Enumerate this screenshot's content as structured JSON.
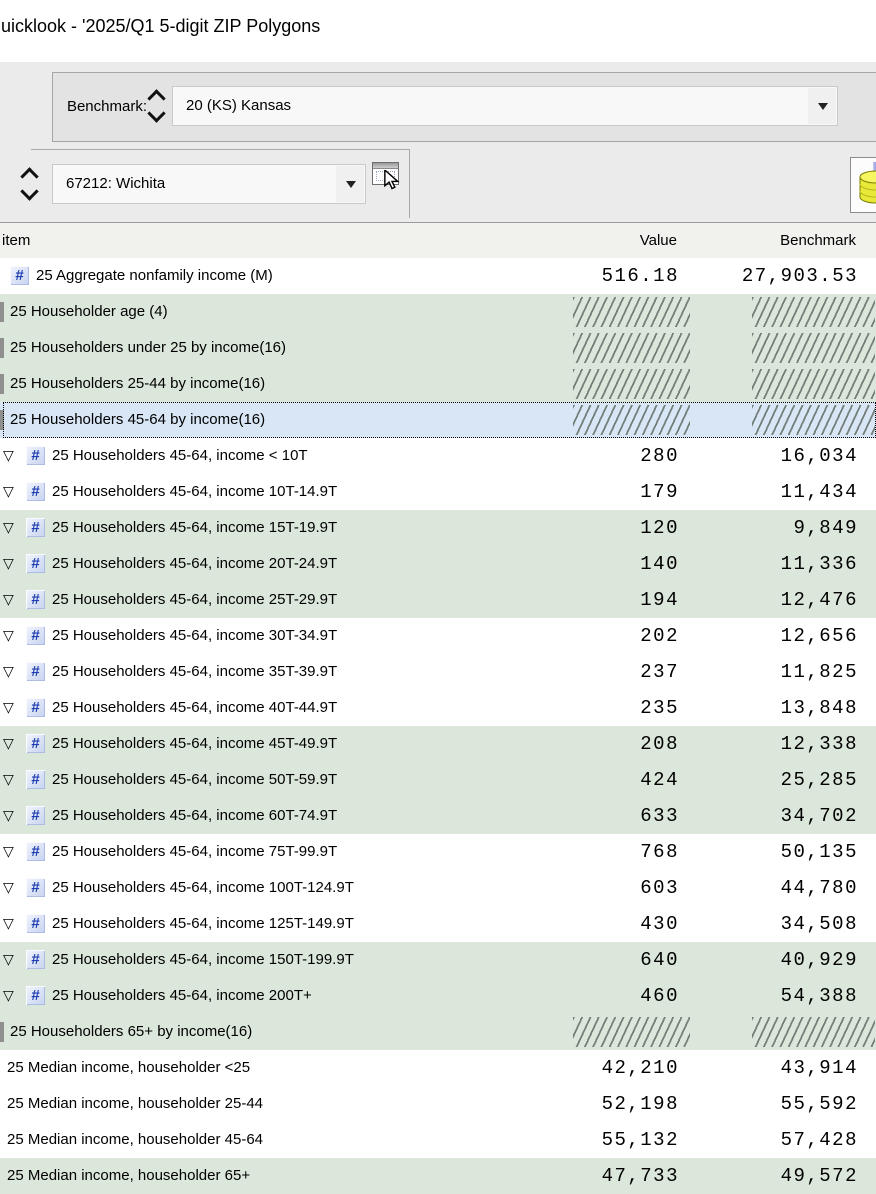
{
  "window": {
    "title": "uicklook - '2025/Q1 5-digit ZIP Polygons"
  },
  "colors": {
    "band_green": "#dce7db",
    "selected_blue": "#d8e6f6",
    "hash_icon_blue": "#1d3fb0",
    "panel_grey": "#e3e3e3",
    "background_grey": "#ebebeb"
  },
  "icons": {
    "hash_glyph": "#",
    "triangle_glyph": "▽",
    "dropdown_caret": "▼",
    "spinner": "up-down-chevrons",
    "map_select": "map-window-cursor",
    "side_button": "yellow-cylinder"
  },
  "benchmark_bar": {
    "label": "Benchmark:",
    "selected": "20 (KS) Kansas"
  },
  "area_bar": {
    "selected": "67212: Wichita"
  },
  "table": {
    "columns": [
      "item",
      "Value",
      "Benchmark"
    ],
    "rows": [
      {
        "label": "25 Aggregate nonfamily income (M)",
        "value": "516.18",
        "benchmark": "27,903.53",
        "kind": "measure",
        "shaded": false,
        "selected": false
      },
      {
        "label": "25 Householder age (4)",
        "value": null,
        "benchmark": null,
        "kind": "group",
        "shaded": true,
        "selected": false
      },
      {
        "label": "25 Householders under 25 by income(16)",
        "value": null,
        "benchmark": null,
        "kind": "group",
        "shaded": true,
        "selected": false
      },
      {
        "label": "25 Householders 25-44 by income(16)",
        "value": null,
        "benchmark": null,
        "kind": "group",
        "shaded": true,
        "selected": false
      },
      {
        "label": "25 Householders 45-64 by income(16)",
        "value": null,
        "benchmark": null,
        "kind": "group",
        "shaded": false,
        "selected": true
      },
      {
        "label": "25 Householders 45-64, income < 10T",
        "value": "280",
        "benchmark": "16,034",
        "kind": "detail",
        "shaded": false,
        "selected": false
      },
      {
        "label": "25 Householders 45-64, income 10T-14.9T",
        "value": "179",
        "benchmark": "11,434",
        "kind": "detail",
        "shaded": false,
        "selected": false
      },
      {
        "label": "25 Householders 45-64, income 15T-19.9T",
        "value": "120",
        "benchmark": "9,849",
        "kind": "detail",
        "shaded": true,
        "selected": false
      },
      {
        "label": "25 Householders 45-64, income 20T-24.9T",
        "value": "140",
        "benchmark": "11,336",
        "kind": "detail",
        "shaded": true,
        "selected": false
      },
      {
        "label": "25 Householders 45-64, income 25T-29.9T",
        "value": "194",
        "benchmark": "12,476",
        "kind": "detail",
        "shaded": true,
        "selected": false
      },
      {
        "label": "25 Householders 45-64, income 30T-34.9T",
        "value": "202",
        "benchmark": "12,656",
        "kind": "detail",
        "shaded": false,
        "selected": false
      },
      {
        "label": "25 Householders 45-64, income 35T-39.9T",
        "value": "237",
        "benchmark": "11,825",
        "kind": "detail",
        "shaded": false,
        "selected": false
      },
      {
        "label": "25 Householders 45-64, income 40T-44.9T",
        "value": "235",
        "benchmark": "13,848",
        "kind": "detail",
        "shaded": false,
        "selected": false
      },
      {
        "label": "25 Householders 45-64, income 45T-49.9T",
        "value": "208",
        "benchmark": "12,338",
        "kind": "detail",
        "shaded": true,
        "selected": false
      },
      {
        "label": "25 Householders 45-64, income 50T-59.9T",
        "value": "424",
        "benchmark": "25,285",
        "kind": "detail",
        "shaded": true,
        "selected": false
      },
      {
        "label": "25 Householders 45-64, income 60T-74.9T",
        "value": "633",
        "benchmark": "34,702",
        "kind": "detail",
        "shaded": true,
        "selected": false
      },
      {
        "label": "25 Householders 45-64, income 75T-99.9T",
        "value": "768",
        "benchmark": "50,135",
        "kind": "detail",
        "shaded": false,
        "selected": false
      },
      {
        "label": "25 Householders 45-64, income 100T-124.9T",
        "value": "603",
        "benchmark": "44,780",
        "kind": "detail",
        "shaded": false,
        "selected": false
      },
      {
        "label": "25 Householders 45-64, income 125T-149.9T",
        "value": "430",
        "benchmark": "34,508",
        "kind": "detail",
        "shaded": false,
        "selected": false
      },
      {
        "label": "25 Householders 45-64, income 150T-199.9T",
        "value": "640",
        "benchmark": "40,929",
        "kind": "detail",
        "shaded": true,
        "selected": false
      },
      {
        "label": "25 Householders 45-64, income 200T+",
        "value": "460",
        "benchmark": "54,388",
        "kind": "detail",
        "shaded": true,
        "selected": false
      },
      {
        "label": "25 Householders 65+ by income(16)",
        "value": null,
        "benchmark": null,
        "kind": "group",
        "shaded": true,
        "selected": false
      },
      {
        "label": "25 Median income, householder <25",
        "value": "42,210",
        "benchmark": "43,914",
        "kind": "plain",
        "shaded": false,
        "selected": false
      },
      {
        "label": "25 Median income, householder 25-44",
        "value": "52,198",
        "benchmark": "55,592",
        "kind": "plain",
        "shaded": false,
        "selected": false
      },
      {
        "label": "25 Median income, householder 45-64",
        "value": "55,132",
        "benchmark": "57,428",
        "kind": "plain",
        "shaded": false,
        "selected": false
      },
      {
        "label": "25 Median income, householder 65+",
        "value": "47,733",
        "benchmark": "49,572",
        "kind": "plain",
        "shaded": true,
        "selected": false
      }
    ]
  }
}
